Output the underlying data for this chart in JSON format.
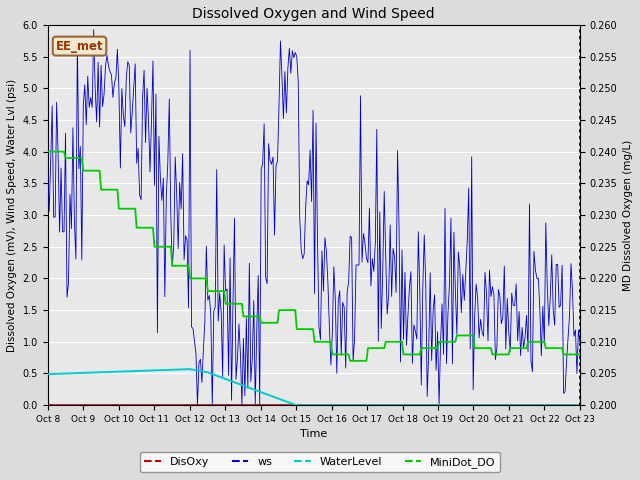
{
  "title": "Dissolved Oxygen and Wind Speed",
  "xlabel": "Time",
  "ylabel_left": "Dissolved Oxygen (mV), Wind Speed, Water Lvl (psi)",
  "ylabel_right": "MD Dissolved Oxygen (mg/L)",
  "annotation": "EE_met",
  "ylim_left": [
    0.0,
    6.0
  ],
  "ylim_right": [
    0.2,
    0.26
  ],
  "yticks_left": [
    0.0,
    0.5,
    1.0,
    1.5,
    2.0,
    2.5,
    3.0,
    3.5,
    4.0,
    4.5,
    5.0,
    5.5,
    6.0
  ],
  "yticks_right": [
    0.2,
    0.205,
    0.21,
    0.215,
    0.22,
    0.225,
    0.23,
    0.235,
    0.24,
    0.245,
    0.25,
    0.255,
    0.26
  ],
  "xtick_labels": [
    "Oct 8",
    "Oct 9",
    "Oct 10",
    "Oct 11",
    "Oct 12",
    "Oct 13",
    "Oct 14",
    "Oct 15",
    "Oct 16",
    "Oct 17",
    "Oct 18",
    "Oct 19",
    "Oct 20",
    "Oct 21",
    "Oct 22",
    "Oct 23"
  ],
  "colors": {
    "DisOxy": "#cc0000",
    "ws": "#0000cc",
    "WaterLevel": "#00cccc",
    "MiniDot_DO": "#00cc00",
    "background": "#dcdcdc",
    "plot_bg": "#e8e8e8"
  },
  "bg_color": "#dcdcdc",
  "plot_bg": "#e8e8e8"
}
